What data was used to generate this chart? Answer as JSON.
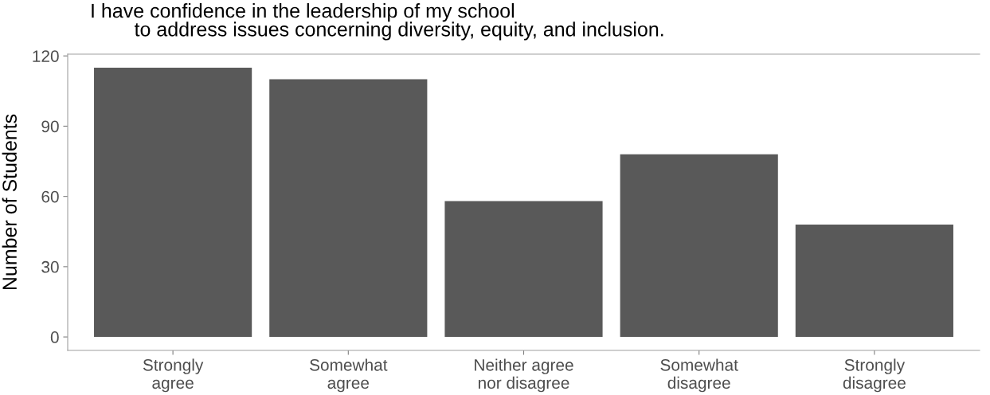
{
  "chart_data": {
    "type": "bar",
    "title": "I have confidence in the leadership of my school\n        to address issues concerning diversity, equity, and inclusion.",
    "ylabel": "Number of Students",
    "categories": [
      "Strongly\nagree",
      "Somewhat\nagree",
      "Neither agree\nnor disagree",
      "Somewhat\ndisagree",
      "Strongly\ndisagree"
    ],
    "values": [
      115,
      110,
      58,
      78,
      48
    ],
    "color": "#595959",
    "ylim": [
      -5.75,
      120.75
    ],
    "yticks": [
      0,
      30,
      60,
      90,
      120
    ],
    "grid": false
  }
}
